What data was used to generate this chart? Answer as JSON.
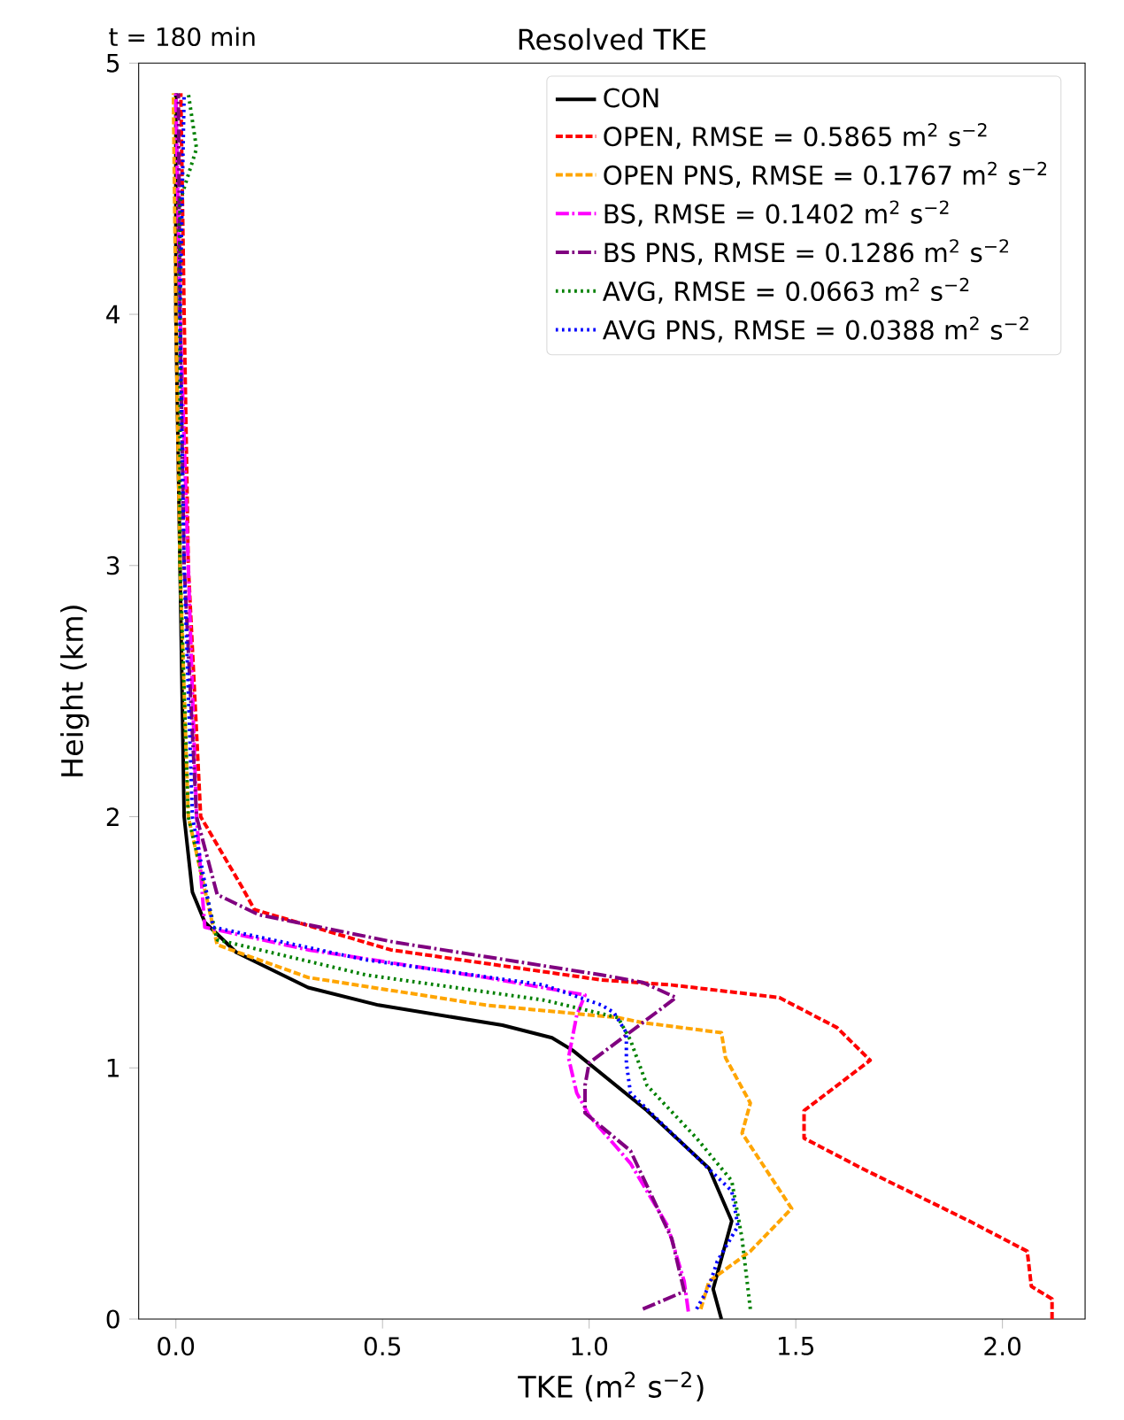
{
  "chart_data": {
    "type": "line",
    "title": "Resolved TKE",
    "xlabel": "TKE (m$^{2}$ s$^{−2}$)",
    "ylabel": "Height (km)",
    "annotations": [
      "t = 180 min"
    ],
    "xlim": [
      -0.09,
      2.2
    ],
    "ylim": [
      0,
      5
    ],
    "xticks": [
      {
        "value": 0,
        "label": "0.0"
      },
      {
        "value": 0.5,
        "label": "0.5"
      },
      {
        "value": 1,
        "label": "1.0"
      },
      {
        "value": 1.5,
        "label": "1.5"
      },
      {
        "value": 2,
        "label": "2.0"
      }
    ],
    "yticks": [
      0,
      1,
      2,
      3,
      4,
      5
    ],
    "legend": "top right",
    "grid": false,
    "series": [
      {
        "name": "CON",
        "color": "#000000",
        "line_style": "solid",
        "x": [
          1.32,
          1.3,
          1.345,
          1.29,
          1.14,
          0.96,
          0.91,
          0.79,
          0.49,
          0.32,
          0.146,
          0.07,
          0.04,
          0.02,
          0.01,
          0.0,
          0.0
        ],
        "values": [
          0,
          0.12,
          0.39,
          0.6,
          0.83,
          1.07,
          1.12,
          1.17,
          1.25,
          1.32,
          1.46,
          1.58,
          1.7,
          2.0,
          3.0,
          4.0,
          4.88
        ]
      },
      {
        "name": "OPEN, RMSE = 0.5865 m$^{2}$ s$^{−2}$",
        "color": "#ff0000",
        "line_style": "dashed",
        "x": [
          2.12,
          2.12,
          2.07,
          2.06,
          1.92,
          1.66,
          1.52,
          1.52,
          1.68,
          1.6,
          1.46,
          1.2,
          1.03,
          0.52,
          0.19,
          0.16,
          0.06,
          0.03,
          0.02,
          0.012
        ],
        "values": [
          0,
          0.08,
          0.13,
          0.27,
          0.39,
          0.6,
          0.72,
          0.83,
          1.03,
          1.16,
          1.28,
          1.33,
          1.35,
          1.47,
          1.63,
          1.72,
          2.0,
          3.0,
          4.0,
          4.88
        ]
      },
      {
        "name": "OPEN PNS, RMSE = 0.1767 m$^{2}$ s$^{−2}$",
        "color": "#ffa500",
        "line_style": "dashed",
        "x": [
          1.27,
          1.29,
          1.39,
          1.49,
          1.37,
          1.39,
          1.33,
          1.32,
          1.13,
          1.07,
          0.75,
          0.32,
          0.1,
          0.03,
          0.01,
          0.0,
          -0.006
        ],
        "values": [
          0.04,
          0.15,
          0.27,
          0.44,
          0.74,
          0.86,
          1.04,
          1.14,
          1.18,
          1.2,
          1.25,
          1.36,
          1.49,
          2.0,
          3.0,
          4.0,
          4.88
        ]
      },
      {
        "name": "BS, RMSE = 0.1402 m$^{2}$ s$^{−2}$",
        "color": "#ff00ff",
        "line_style": "dashdot",
        "x": [
          1.24,
          1.23,
          1.19,
          1.1,
          1.0,
          0.97,
          0.95,
          0.97,
          0.99,
          0.75,
          0.32,
          0.07,
          0.05,
          0.03,
          0.01,
          0.0
        ],
        "values": [
          0.03,
          0.15,
          0.37,
          0.62,
          0.81,
          0.9,
          1.04,
          1.21,
          1.29,
          1.36,
          1.47,
          1.56,
          2.0,
          3.0,
          4.0,
          4.88
        ]
      },
      {
        "name": "BS PNS, RMSE = 0.1286 m$^{2}$ s$^{−2}$",
        "color": "#800080",
        "line_style": "dashdot",
        "x": [
          1.13,
          1.23,
          1.2,
          1.1,
          0.99,
          0.99,
          1.0,
          1.17,
          1.21,
          1.13,
          1.03,
          0.53,
          0.2,
          0.1,
          0.05,
          0.02,
          0.01,
          0.006
        ],
        "values": [
          0.04,
          0.11,
          0.32,
          0.67,
          0.82,
          0.93,
          1.02,
          1.23,
          1.28,
          1.34,
          1.37,
          1.5,
          1.61,
          1.69,
          2.0,
          3.0,
          4.0,
          4.88
        ]
      },
      {
        "name": "AVG, RMSE = 0.0663 m$^{2}$ s$^{−2}$",
        "color": "#008000",
        "line_style": "dotted",
        "x": [
          1.39,
          1.37,
          1.345,
          1.26,
          1.14,
          1.1,
          1.07,
          0.89,
          0.46,
          0.1,
          0.03,
          0.01,
          0.01,
          0.05,
          0.03
        ],
        "values": [
          0.04,
          0.32,
          0.55,
          0.72,
          0.93,
          1.11,
          1.2,
          1.27,
          1.37,
          1.51,
          2.0,
          3.0,
          4.45,
          4.66,
          4.88
        ]
      },
      {
        "name": "AVG PNS, RMSE = 0.0388 m$^{2}$ s$^{−2}$",
        "color": "#0000ff",
        "line_style": "dotted",
        "x": [
          1.26,
          1.29,
          1.31,
          1.36,
          1.345,
          1.2,
          1.1,
          1.09,
          1.09,
          1.06,
          1.03,
          0.89,
          0.46,
          0.09,
          0.04,
          0.02,
          0.01,
          0.02
        ],
        "values": [
          0.04,
          0.13,
          0.23,
          0.37,
          0.51,
          0.74,
          0.9,
          1.02,
          1.14,
          1.22,
          1.25,
          1.33,
          1.43,
          1.56,
          2.0,
          3.0,
          4.0,
          4.88
        ]
      }
    ]
  }
}
